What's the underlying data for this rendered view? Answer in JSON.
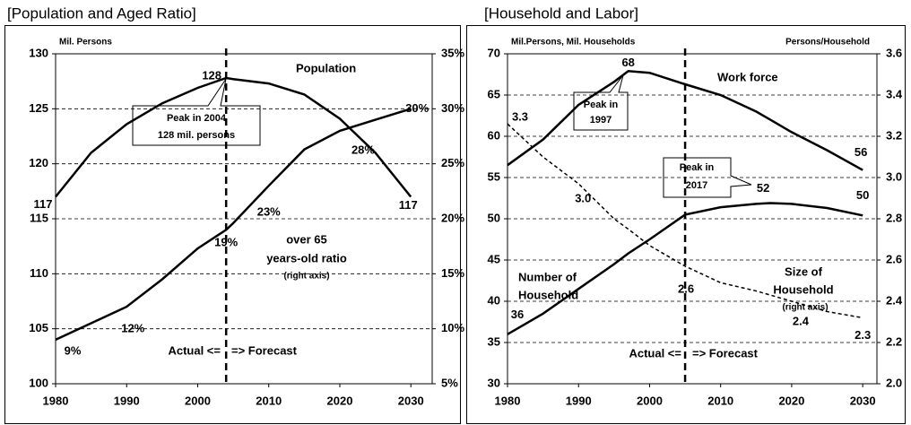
{
  "chart_data": [
    {
      "type": "line",
      "title": "[Population and Aged Ratio]",
      "x": [
        1980,
        1985,
        1990,
        1995,
        2000,
        2004,
        2005,
        2010,
        2015,
        2020,
        2025,
        2030
      ],
      "xlim": [
        1980,
        2033
      ],
      "xticks": [
        1980,
        1990,
        2000,
        2010,
        2020,
        2030
      ],
      "ylim": [
        100,
        130
      ],
      "yticks": [
        100,
        105,
        110,
        115,
        120,
        125,
        130
      ],
      "y2lim": [
        5,
        35
      ],
      "y2ticks": [
        {
          "value": 5,
          "label": "5%"
        },
        {
          "value": 10,
          "label": "10%"
        },
        {
          "value": 15,
          "label": "15%"
        },
        {
          "value": 20,
          "label": "20%"
        },
        {
          "value": 25,
          "label": "25%"
        },
        {
          "value": 30,
          "label": "30%"
        },
        {
          "value": 35,
          "label": "35%"
        }
      ],
      "grid": true,
      "forecast_start": 2004,
      "series": [
        {
          "name": "Population",
          "color": "#000000",
          "line_style": "solid",
          "values": [
            117,
            121,
            123.6,
            125.5,
            126.9,
            127.8,
            127.7,
            127.3,
            126.3,
            124.1,
            121,
            117
          ],
          "value_labels": [
            "117",
            null,
            null,
            null,
            null,
            "128",
            null,
            null,
            null,
            null,
            null,
            "117"
          ]
        },
        {
          "color": "#000000",
          "axis": "y2",
          "line_style": "solid",
          "values": [
            9,
            10.5,
            12,
            14.5,
            17.3,
            19,
            19.6,
            23,
            26.3,
            28,
            29,
            30
          ],
          "value_labels": [
            "9%",
            null,
            "12%",
            null,
            null,
            "19%",
            null,
            "23%",
            null,
            "28%",
            null,
            "30%"
          ]
        }
      ],
      "annotations": [
        "Mil. Persons",
        "over 65",
        "years-old ratio",
        "(right axis)",
        "Peak in 2004",
        "128 mil. persons",
        "Actual <=",
        "=> Forecast"
      ]
    },
    {
      "type": "line",
      "title": "[Household and Labor]",
      "x": [
        1980,
        1985,
        1990,
        1995,
        1997,
        2000,
        2005,
        2010,
        2015,
        2017,
        2020,
        2025,
        2030
      ],
      "xlim": [
        1980,
        2032
      ],
      "xticks": [
        1980,
        1990,
        2000,
        2010,
        2020,
        2030
      ],
      "ylim": [
        30,
        70
      ],
      "yticks": [
        30,
        35,
        40,
        45,
        50,
        55,
        60,
        65,
        70
      ],
      "y2lim": [
        2,
        3.6
      ],
      "y2ticks": [
        {
          "value": 2,
          "label": "2.0"
        },
        2.2,
        2.4,
        2.6,
        2.8,
        {
          "value": 3,
          "label": "3.0"
        },
        3.2,
        3.4,
        3.6
      ],
      "grid": true,
      "forecast_start": 2005,
      "series": [
        {
          "name": "Work force",
          "color": "#000000",
          "line_style": "solid",
          "values": [
            56.5,
            59.6,
            63.8,
            66.6,
            67.9,
            67.7,
            66.3,
            65,
            63,
            62,
            60.5,
            58.3,
            55.9
          ],
          "value_labels": [
            null,
            null,
            null,
            null,
            "68",
            null,
            null,
            null,
            null,
            null,
            null,
            null,
            "56"
          ]
        },
        {
          "color": "#000000",
          "line_style": "solid",
          "values": [
            36,
            38.5,
            41.5,
            44.5,
            45.8,
            47.5,
            50.5,
            51.4,
            51.8,
            51.9,
            51.8,
            51.3,
            50.4
          ],
          "value_labels": [
            "36",
            null,
            null,
            null,
            null,
            null,
            null,
            null,
            null,
            "52",
            null,
            null,
            "50"
          ]
        },
        {
          "color": "#000000",
          "axis": "y2",
          "line_style": "dashed",
          "values": [
            3.26,
            3.1,
            2.97,
            2.8,
            2.75,
            2.67,
            2.57,
            2.49,
            2.45,
            2.43,
            2.4,
            2.35,
            2.32
          ],
          "value_labels": [
            "3.3",
            null,
            "3.0",
            null,
            null,
            null,
            "2.6",
            null,
            null,
            null,
            "2.4",
            null,
            "2.3"
          ]
        }
      ],
      "annotations": [
        "Mil.Persons, Mil. Households",
        "Persons/Household",
        "Peak in",
        "1997",
        "Peak in",
        "2017",
        "Number of",
        "Household",
        "Size of",
        "Household",
        "(right axis)",
        "Actual <=",
        "=> Forecast"
      ]
    }
  ]
}
